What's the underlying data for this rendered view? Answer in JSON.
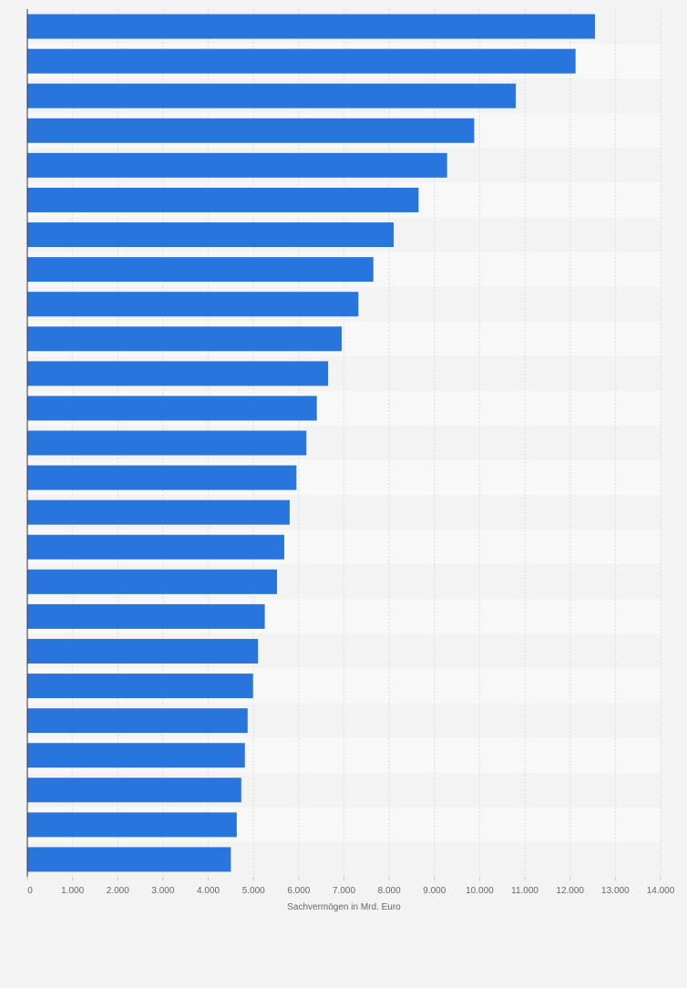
{
  "chart_data": {
    "type": "bar",
    "orientation": "horizontal",
    "title": "",
    "xlabel": "Sachvermögen in Mrd. Euro",
    "ylabel": "",
    "categories": [
      "",
      "",
      "",
      "",
      "",
      "",
      "",
      "",
      "",
      "",
      "",
      "",
      "",
      "",
      "",
      "",
      "",
      "",
      "",
      "",
      "",
      "",
      "",
      "",
      ""
    ],
    "values": [
      12550,
      12120,
      10800,
      9880,
      9280,
      8650,
      8100,
      7650,
      7320,
      6950,
      6650,
      6400,
      6170,
      5950,
      5800,
      5680,
      5520,
      5250,
      5100,
      4990,
      4870,
      4810,
      4730,
      4630,
      4500
    ],
    "xlim": [
      0,
      14000
    ],
    "xticks": [
      0,
      1000,
      2000,
      3000,
      4000,
      5000,
      6000,
      7000,
      8000,
      9000,
      10000,
      11000,
      12000,
      13000,
      14000
    ],
    "xtick_labels": [
      "0",
      "1.000",
      "2.000",
      "3.000",
      "4.000",
      "5.000",
      "6.000",
      "7.000",
      "8.000",
      "9.000",
      "10.000",
      "11.000",
      "12.000",
      "13.000",
      "14.000"
    ],
    "grid": true,
    "legend": "none",
    "bar_color": "#2876dd"
  }
}
